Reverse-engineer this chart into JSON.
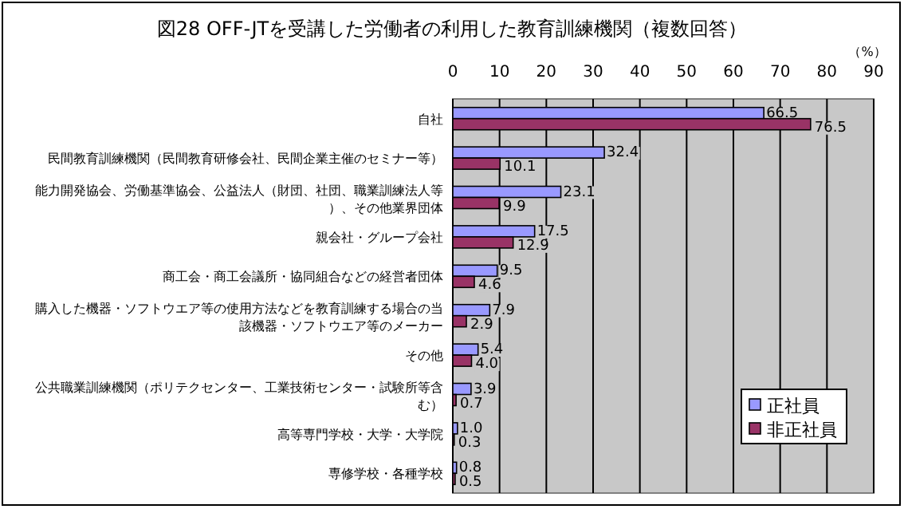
{
  "chart_data": {
    "type": "bar",
    "orientation": "horizontal",
    "title": "図28 OFF-JTを受講した労働者の利用した教育訓練機関（複数回答）",
    "xlabel": "（%）",
    "categories": [
      "自社",
      "民間教育訓練機関（民間教育研修会社、民間企業主催のセミナー等）",
      "能力開発協会、労働基準協会、公益法人（財団、社団、職業訓練法人等）、その他業界団体",
      "親会社・グループ会社",
      "商工会・商工会議所・協同組合などの経営者団体",
      "購入した機器・ソフトウエア等の使用方法などを教育訓練する場合の当該機器・ソフトウエア等のメーカー",
      "その他",
      "公共職業訓練機関（ポリテクセンター、工業技術センター・試験所等含む）",
      "高等専門学校・大学・大学院",
      "専修学校・各種学校"
    ],
    "series": [
      {
        "name": "正社員",
        "color": "#9999ff",
        "values": [
          66.5,
          32.4,
          23.1,
          17.5,
          9.5,
          7.9,
          5.4,
          3.9,
          1.0,
          0.8
        ],
        "value_labels": [
          "66.5",
          "32.4",
          "23.1",
          "17.5",
          "9.5",
          "7.9",
          "5.4",
          "3.9",
          "1.0",
          "0.8"
        ]
      },
      {
        "name": "非正社員",
        "color": "#993366",
        "values": [
          76.5,
          10.1,
          9.9,
          12.9,
          4.6,
          2.9,
          4.0,
          0.7,
          0.3,
          0.5
        ],
        "value_labels": [
          "76.5",
          "10.1",
          "9.9",
          "12.9",
          "4.6",
          "2.9",
          "4.0",
          "0.7",
          "0.3",
          "0.5"
        ]
      }
    ],
    "xlim": [
      0,
      90
    ],
    "xticks": [
      0,
      10,
      20,
      30,
      40,
      50,
      60,
      70,
      80,
      90
    ],
    "grid": "x",
    "legend": "bottom right"
  }
}
